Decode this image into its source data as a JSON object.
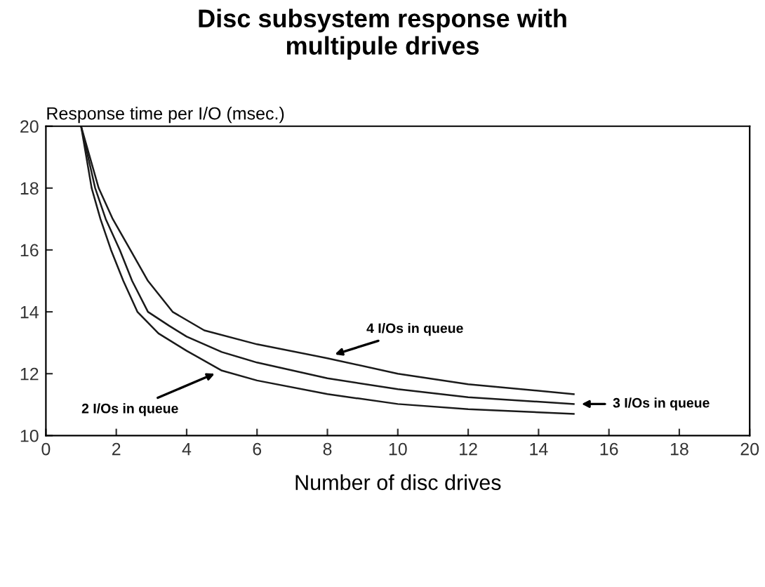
{
  "chart_data": {
    "type": "line",
    "title": "Disc subsystem response with\nmultipule drives",
    "xlabel": "Number of disc drives",
    "ylabel": "Response time per I/O (msec.)",
    "xlim": [
      0,
      20
    ],
    "ylim": [
      10,
      20
    ],
    "xticks": [
      0,
      2,
      4,
      6,
      8,
      10,
      12,
      14,
      16,
      18,
      20
    ],
    "yticks": [
      10,
      12,
      14,
      16,
      18,
      20
    ],
    "grid": false,
    "legend": false,
    "marker": "none",
    "line_style": "solid",
    "series": [
      {
        "color": "#1a1a1a",
        "x": [
          1,
          1.25,
          1.5,
          1.9,
          2.4,
          2.9,
          3.6,
          4.5,
          6,
          8,
          10,
          12,
          15
        ],
        "values": [
          20,
          19,
          18,
          17,
          16,
          15,
          14,
          13.4,
          12.95,
          12.5,
          12.0,
          11.66,
          11.34
        ]
      },
      {
        "color": "#1a1a1a",
        "x": [
          1,
          1.2,
          1.4,
          1.7,
          2.1,
          2.45,
          2.9,
          3.5,
          4,
          5,
          6,
          8,
          10,
          12,
          15
        ],
        "values": [
          20,
          19,
          18,
          17,
          16,
          15,
          14,
          13.55,
          13.2,
          12.7,
          12.36,
          11.85,
          11.5,
          11.24,
          11.02
        ]
      },
      {
        "color": "#1a1a1a",
        "x": [
          1,
          1.15,
          1.3,
          1.55,
          1.85,
          2.2,
          2.6,
          3.2,
          4,
          5,
          6,
          8,
          10,
          12,
          15
        ],
        "values": [
          20,
          19,
          18,
          17,
          16,
          15,
          14,
          13.3,
          12.74,
          12.1,
          11.78,
          11.34,
          11.02,
          10.85,
          10.7
        ]
      }
    ],
    "annotations": [
      {
        "text": "4 I/Os in queue",
        "x": 8,
        "y": 12.55
      },
      {
        "text": "3 I/Os in queue",
        "x": 15,
        "y": 11.02
      },
      {
        "text": "2 I/Os in queue",
        "x": 5,
        "y": 12.1
      }
    ]
  }
}
